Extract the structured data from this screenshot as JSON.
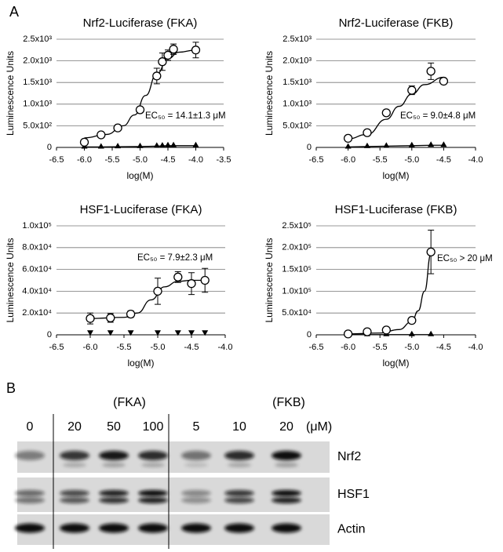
{
  "panel_label": "A",
  "chart_data": [
    {
      "type": "scatter",
      "title": "Nrf2-Luciferase  (FKA)",
      "x_label": "log(M)",
      "y_label": "Luminescence Units",
      "annotation": "EC₅₀ = 14.1±1.3 μM",
      "xlim": [
        -6.5,
        -3.5
      ],
      "xticks": [
        -6.5,
        {
          "value": -6,
          "label": "-6.0"
        },
        -5.5,
        {
          "value": -5,
          "label": "-5.0"
        },
        -4.5,
        {
          "value": -4,
          "label": "-4.0"
        },
        -3.5
      ],
      "ylim": [
        0,
        2500
      ],
      "yticks": [
        0,
        {
          "value": 500,
          "label": "5.0x10²"
        },
        {
          "value": 1000,
          "label": "1.0x10³"
        },
        {
          "value": 1500,
          "label": "1.5x10³"
        },
        {
          "value": 2000,
          "label": "2.0x10³"
        },
        {
          "value": 2500,
          "label": "2.5x10³"
        }
      ],
      "grid": true,
      "series": [
        {
          "marker": "circle",
          "color": "#000000",
          "x": [
            -6.0,
            -5.7,
            -5.4,
            -5.0,
            -4.7,
            -4.6,
            -4.5,
            -4.4,
            -4.0
          ],
          "values": [
            120,
            290,
            450,
            870,
            1650,
            1980,
            2130,
            2270,
            2250
          ],
          "errors": [
            60,
            30,
            30,
            40,
            180,
            200,
            120,
            120,
            180
          ]
        },
        {
          "marker": "triangle-up",
          "color": "#000000",
          "line": true,
          "x": [
            -6.0,
            -5.7,
            -5.4,
            -5.0,
            -4.7,
            -4.6,
            -4.5,
            -4.4,
            -4.0
          ],
          "values": [
            10,
            10,
            15,
            20,
            30,
            35,
            40,
            40,
            40
          ]
        },
        {
          "marker": "none",
          "color": "#000000",
          "line": true,
          "x": [
            -6.0,
            -5.6,
            -5.3,
            -5.1,
            -4.9,
            -4.7,
            -4.5,
            -4.3,
            -4.0
          ],
          "values": [
            220,
            300,
            500,
            750,
            1200,
            1700,
            2050,
            2200,
            2250
          ]
        }
      ]
    },
    {
      "type": "scatter",
      "title": "Nrf2-Luciferase  (FKB)",
      "x_label": "log(M)",
      "y_label": "Luminescence Units",
      "annotation": "EC₅₀ = 9.0±4.8 μM",
      "xlim": [
        -6.5,
        -4
      ],
      "xticks": [
        -6.5,
        {
          "value": -6,
          "label": "-6.0"
        },
        -5.5,
        {
          "value": -5,
          "label": "-5.0"
        },
        -4.5,
        {
          "value": -4,
          "label": "-4.0"
        }
      ],
      "ylim": [
        0,
        2500
      ],
      "yticks": [
        0,
        {
          "value": 500,
          "label": "5.0x10²"
        },
        {
          "value": 1000,
          "label": "1.0x10³"
        },
        {
          "value": 1500,
          "label": "1.5x10³"
        },
        {
          "value": 2000,
          "label": "2.0x10³"
        },
        {
          "value": 2500,
          "label": "2.5x10³"
        }
      ],
      "grid": true,
      "series": [
        {
          "marker": "circle",
          "color": "#000000",
          "x": [
            -6.0,
            -5.7,
            -5.4,
            -5.0,
            -4.7,
            -4.5
          ],
          "values": [
            210,
            340,
            800,
            1320,
            1760,
            1530
          ],
          "errors": [
            30,
            30,
            40,
            100,
            190,
            40
          ]
        },
        {
          "marker": "triangle-up",
          "color": "#000000",
          "line": true,
          "x": [
            -6.0,
            -5.7,
            -5.4,
            -5.0,
            -4.7,
            -4.5
          ],
          "values": [
            10,
            20,
            30,
            40,
            50,
            50
          ]
        },
        {
          "marker": "none",
          "color": "#000000",
          "line": true,
          "x": [
            -6.0,
            -5.7,
            -5.4,
            -5.2,
            -5.0,
            -4.8,
            -4.5
          ],
          "values": [
            200,
            300,
            650,
            950,
            1230,
            1450,
            1620
          ]
        }
      ]
    },
    {
      "type": "scatter",
      "title": "HSF1-Luciferase (FKA)",
      "x_label": "log(M)",
      "y_label": "Luminescence Units",
      "annotation": "EC₅₀ = 7.9±2.3 μM",
      "xlim": [
        -6.5,
        -4
      ],
      "xticks": [
        -6.5,
        {
          "value": -6,
          "label": "-6.0"
        },
        -5.5,
        {
          "value": -5,
          "label": "-5.0"
        },
        -4.5,
        {
          "value": -4,
          "label": "-4.0"
        }
      ],
      "ylim": [
        0,
        100000
      ],
      "yticks": [
        0,
        {
          "value": 20000,
          "label": "2.0x10⁴"
        },
        {
          "value": 40000,
          "label": "4.0x10⁴"
        },
        {
          "value": 60000,
          "label": "6.0x10⁴"
        },
        {
          "value": 80000,
          "label": "8.0x10⁴"
        },
        {
          "value": 100000,
          "label": "1.0x10⁵"
        }
      ],
      "grid": true,
      "series": [
        {
          "marker": "circle",
          "color": "#000000",
          "x": [
            -6.0,
            -5.7,
            -5.4,
            -5.0,
            -4.7,
            -4.5,
            -4.3
          ],
          "values": [
            15000,
            15500,
            19000,
            40000,
            53000,
            47000,
            50000
          ],
          "errors": [
            5000,
            4000,
            3000,
            12000,
            5000,
            10000,
            11000
          ]
        },
        {
          "marker": "triangle-down",
          "color": "#000000",
          "line": false,
          "x": [
            -6.0,
            -5.7,
            -5.4,
            -5.0,
            -4.7,
            -4.5,
            -4.3
          ],
          "values": [
            500,
            500,
            500,
            500,
            500,
            500,
            500
          ]
        },
        {
          "marker": "none",
          "color": "#000000",
          "line": true,
          "x": [
            -6.0,
            -5.5,
            -5.3,
            -5.1,
            -4.9,
            -4.7,
            -4.5,
            -4.3
          ],
          "values": [
            15000,
            16000,
            20000,
            32000,
            44000,
            49000,
            50000,
            50000
          ]
        }
      ]
    },
    {
      "type": "scatter",
      "title": "HSF1-Luciferase (FKB)",
      "x_label": "log(M)",
      "y_label": "Luminescence Units",
      "annotation": "EC₅₀ > 20 μM",
      "xlim": [
        -6.5,
        -4
      ],
      "xticks": [
        -6.5,
        {
          "value": -6,
          "label": "-6.0"
        },
        -5.5,
        {
          "value": -5,
          "label": "-5.0"
        },
        -4.5,
        {
          "value": -4,
          "label": "-4.0"
        }
      ],
      "ylim": [
        0,
        250000
      ],
      "yticks": [
        0,
        {
          "value": 50000,
          "label": "5.0x10⁴"
        },
        {
          "value": 100000,
          "label": "1.0x10⁵"
        },
        {
          "value": 150000,
          "label": "1.5x10⁵"
        },
        {
          "value": 200000,
          "label": "2.0x10⁵"
        },
        {
          "value": 250000,
          "label": "2.5x10⁵"
        }
      ],
      "grid": true,
      "series": [
        {
          "marker": "circle",
          "color": "#000000",
          "x": [
            -6.0,
            -5.7,
            -5.4,
            -5.0,
            -4.7
          ],
          "values": [
            2000,
            7000,
            11000,
            33000,
            190000
          ],
          "errors": [
            1000,
            1000,
            2000,
            3000,
            50000
          ]
        },
        {
          "marker": "triangle-up",
          "color": "#000000",
          "line": true,
          "x": [
            -6.0,
            -5.7,
            -5.4,
            -5.0,
            -4.7
          ],
          "values": [
            500,
            500,
            500,
            500,
            500
          ]
        },
        {
          "marker": "none",
          "color": "#000000",
          "line": true,
          "x": [
            -6.0,
            -5.5,
            -5.2,
            -5.0,
            -4.9,
            -4.8,
            -4.7
          ],
          "values": [
            2000,
            4000,
            12000,
            30000,
            55000,
            100000,
            185000
          ]
        }
      ]
    }
  ],
  "blot": {
    "panel_label": "B",
    "groups": [
      "(FKA)",
      "(FKB)"
    ],
    "doses": [
      "0",
      "20",
      "50",
      "100",
      "5",
      "10",
      "20"
    ],
    "unit": "(μM)",
    "rows": [
      "Nrf2",
      "HSF1",
      "Actin"
    ]
  }
}
